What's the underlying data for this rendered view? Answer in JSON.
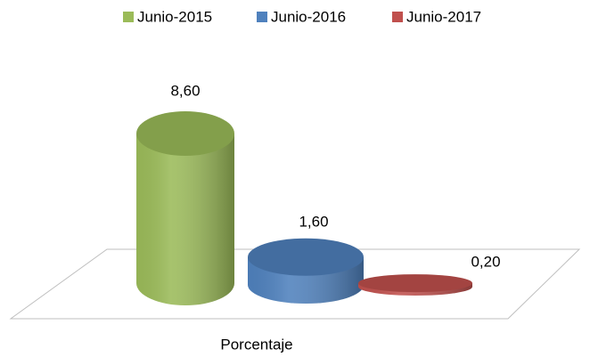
{
  "chart_data": {
    "type": "bar",
    "categories": [
      "Porcentaje"
    ],
    "series": [
      {
        "name": "Junio-2015",
        "color": "#9bbb59",
        "values": [
          8.6
        ],
        "value_labels": [
          "8,60"
        ]
      },
      {
        "name": "Junio-2016",
        "color": "#4f81bd",
        "values": [
          1.6
        ],
        "value_labels": [
          "1,60"
        ]
      },
      {
        "name": "Junio-2017",
        "color": "#c0504d",
        "values": [
          0.2
        ],
        "value_labels": [
          "0,20"
        ]
      }
    ],
    "legend": "top"
  }
}
